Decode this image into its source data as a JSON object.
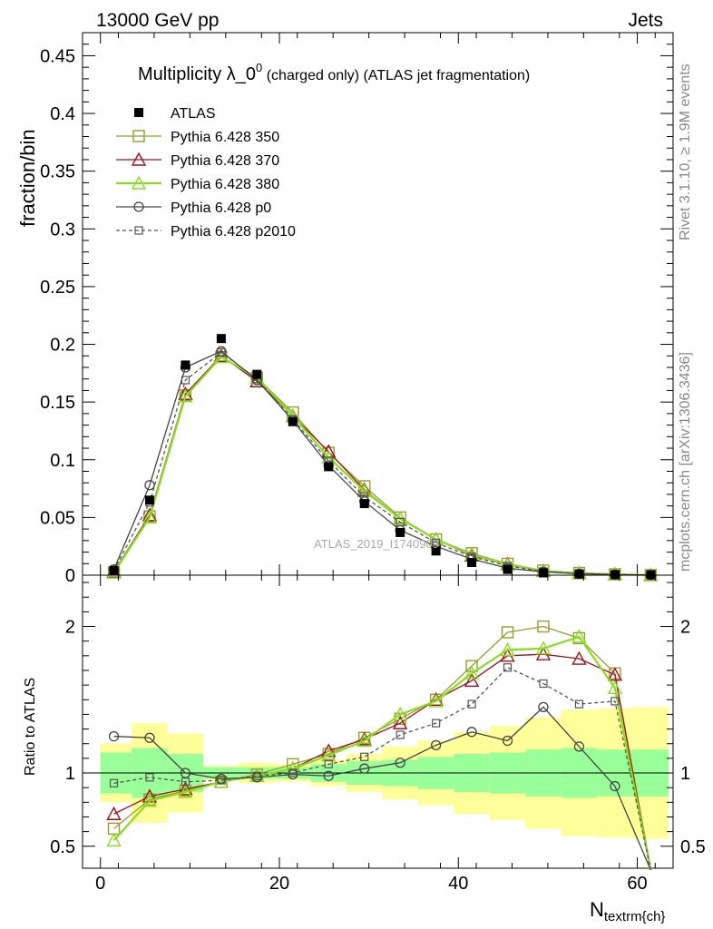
{
  "header": {
    "left": "13000 GeV pp",
    "right": "Jets",
    "side_right_top": "Rivet 3.1.10, ≥ 1.9M events",
    "side_right_bottom": "mcplots.cern.ch [arXiv:1306.3436]",
    "watermark": "ATLAS_2019_I1740909"
  },
  "chart_data": {
    "type": "line",
    "title_main": "Multiplicity λ_0",
    "title_sup": "0",
    "title_rest": " (charged only) (ATLAS jet fragmentation)",
    "xlabel": "N",
    "xlabel_sub": "textrm{ch}",
    "ylabel_top": "fraction/bin",
    "ylabel_bottom": "Ratio to ATLAS",
    "xlim": [
      -2,
      64
    ],
    "ylim_top": [
      0,
      0.47
    ],
    "ylim_bottom": [
      0.35,
      2.35
    ],
    "x_ticks": [
      "0",
      "20",
      "40",
      "60"
    ],
    "y_ticks_top": [
      "0",
      "0.05",
      "0.1",
      "0.15",
      "0.2",
      "0.25",
      "0.3",
      "0.35",
      "0.4",
      "0.45"
    ],
    "y_ticks_bottom": [
      "0.5",
      "1",
      "2"
    ],
    "bin_edges": [
      0,
      3.5,
      7.5,
      11.5,
      15.5,
      19.5,
      23.5,
      27.5,
      31.5,
      35.5,
      39.5,
      43.5,
      47.5,
      51.5,
      55.5,
      59.5,
      63.5
    ],
    "x": [
      1.5,
      5.5,
      9.5,
      13.5,
      17.5,
      21.5,
      25.5,
      29.5,
      33.5,
      37.5,
      41.5,
      45.5,
      49.5,
      53.5,
      57.5,
      61.5
    ],
    "data": {
      "name": "ATLAS",
      "values": [
        0.004,
        0.065,
        0.182,
        0.205,
        0.174,
        0.133,
        0.094,
        0.062,
        0.037,
        0.021,
        0.011,
        0.005,
        0.002,
        0.001,
        0.0005,
        0.0003
      ],
      "band_inner": [
        0.14,
        0.17,
        0.13,
        0.04,
        0.04,
        0.04,
        0.06,
        0.08,
        0.09,
        0.11,
        0.13,
        0.14,
        0.16,
        0.17,
        0.16,
        0.16
      ],
      "band_outer": [
        0.2,
        0.34,
        0.27,
        0.05,
        0.07,
        0.06,
        0.09,
        0.13,
        0.18,
        0.22,
        0.28,
        0.32,
        0.38,
        0.43,
        0.44,
        0.45
      ]
    },
    "series": [
      {
        "name": "Pythia 6.428 350",
        "color": "#9a9a2e",
        "marker": "square-open",
        "dash": "",
        "values": [
          0.0025,
          0.051,
          0.156,
          0.189,
          0.171,
          0.141,
          0.106,
          0.077,
          0.05,
          0.031,
          0.019,
          0.0099,
          0.004,
          0.0019,
          0.0008,
          0.0001
        ],
        "ratio": [
          0.62,
          0.82,
          0.88,
          0.94,
          0.99,
          1.06,
          1.13,
          1.24,
          1.37,
          1.5,
          1.73,
          1.96,
          2.0,
          1.92,
          1.68,
          0.35
        ]
      },
      {
        "name": "Pythia 6.428 370",
        "color": "#a01020",
        "marker": "triangle-open",
        "dash": "",
        "values": [
          0.003,
          0.052,
          0.157,
          0.19,
          0.168,
          0.138,
          0.107,
          0.074,
          0.049,
          0.031,
          0.017,
          0.0095,
          0.0037,
          0.0018,
          0.0008,
          0.0001
        ],
        "ratio": [
          0.72,
          0.84,
          0.89,
          0.94,
          0.98,
          1.03,
          1.15,
          1.23,
          1.34,
          1.5,
          1.63,
          1.8,
          1.81,
          1.78,
          1.67,
          0.33
        ]
      },
      {
        "name": "Pythia 6.428 380",
        "color": "#88dd22",
        "marker": "triangle-open",
        "dash": "",
        "values": [
          0.0022,
          0.05,
          0.155,
          0.189,
          0.171,
          0.138,
          0.102,
          0.073,
          0.049,
          0.031,
          0.018,
          0.0091,
          0.0038,
          0.0018,
          0.0008,
          0.0001
        ],
        "ratio": [
          0.54,
          0.81,
          0.87,
          0.94,
          0.98,
          1.03,
          1.12,
          1.22,
          1.4,
          1.49,
          1.68,
          1.84,
          1.85,
          1.93,
          1.58,
          0.33
        ]
      },
      {
        "name": "Pythia 6.428 p0",
        "color": "#444444",
        "marker": "circle-open",
        "dash": "",
        "values": [
          0.005,
          0.078,
          0.18,
          0.194,
          0.169,
          0.134,
          0.095,
          0.064,
          0.039,
          0.025,
          0.014,
          0.006,
          0.0029,
          0.0012,
          0.0005,
          0.0001
        ],
        "ratio": [
          1.25,
          1.24,
          1.0,
          0.96,
          0.97,
          0.99,
          0.98,
          1.03,
          1.07,
          1.19,
          1.28,
          1.22,
          1.45,
          1.18,
          0.91,
          0.33
        ]
      },
      {
        "name": "Pythia 6.428 p2010",
        "color": "#555555",
        "marker": "square-open-small",
        "dash": "4,3",
        "values": [
          0.004,
          0.063,
          0.169,
          0.193,
          0.17,
          0.135,
          0.099,
          0.068,
          0.046,
          0.028,
          0.016,
          0.008,
          0.0032,
          0.0015,
          0.0007,
          0.0001
        ],
        "ratio": [
          0.93,
          0.97,
          0.94,
          0.95,
          0.98,
          1.0,
          1.06,
          1.11,
          1.26,
          1.34,
          1.47,
          1.72,
          1.61,
          1.47,
          1.49,
          0.33
        ]
      }
    ]
  }
}
